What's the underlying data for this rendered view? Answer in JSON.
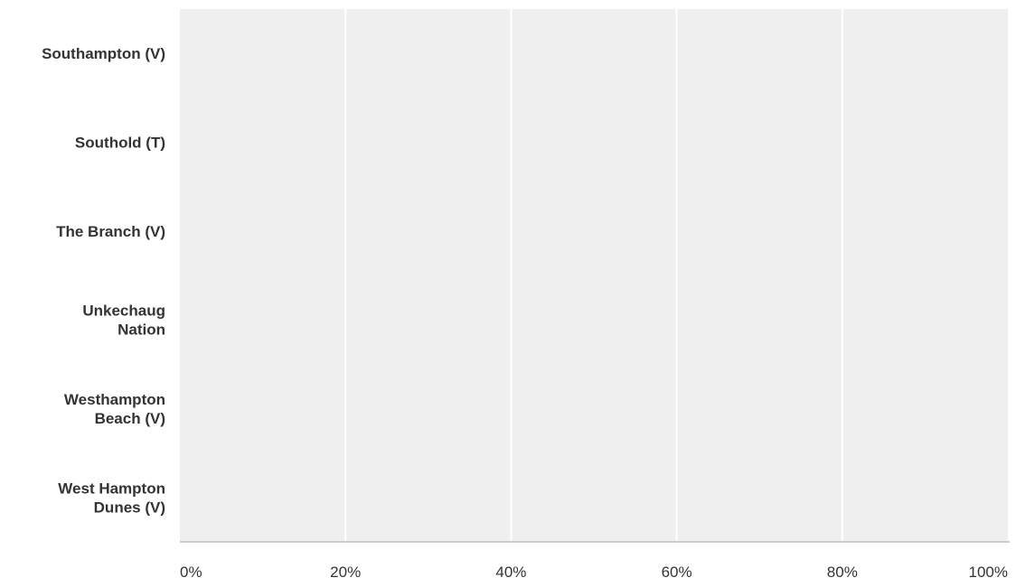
{
  "chart_data": {
    "type": "bar",
    "orientation": "horizontal",
    "categories": [
      [
        "Southampton (V)"
      ],
      [
        "Southold (T)"
      ],
      [
        "The Branch (V)"
      ],
      [
        "Unkechaug",
        "Nation"
      ],
      [
        "Westhampton",
        "Beach (V)"
      ],
      [
        "West Hampton",
        "Dunes (V)"
      ]
    ],
    "values": [
      0,
      0,
      0,
      0,
      0,
      0
    ],
    "xlim": [
      0,
      100
    ],
    "x_ticks": [
      "0%",
      "20%",
      "40%",
      "60%",
      "80%",
      "100%"
    ],
    "grid": "vertical",
    "colors": {
      "plot_background": "#efefef",
      "gridline": "#ffffff",
      "axis_line": "#cccccc",
      "label_text": "#333333"
    }
  }
}
